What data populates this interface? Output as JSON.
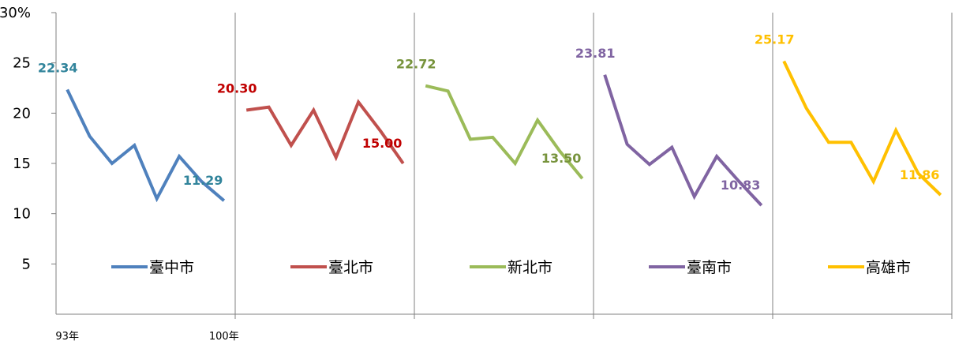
{
  "chart_data": {
    "type": "line",
    "ylim": [
      0,
      30
    ],
    "y_ticks": [
      {
        "value": 5,
        "label": "5"
      },
      {
        "value": 10,
        "label": "10"
      },
      {
        "value": 15,
        "label": "15"
      },
      {
        "value": 20,
        "label": "20"
      },
      {
        "value": 25,
        "label": "25"
      },
      {
        "value": 30,
        "label": "30%"
      }
    ],
    "x_tick_labels": [
      {
        "series_index": 0,
        "point_index": 0,
        "label": "93年"
      },
      {
        "series_index": 0,
        "point_index": 7,
        "label": "100年"
      }
    ],
    "grid": false,
    "legend_position": "inside each panel, lower middle",
    "series": [
      {
        "name": "臺中市",
        "color": "#4F81BD",
        "label_color": "#31849B",
        "values": [
          22.34,
          17.7,
          15.0,
          16.8,
          11.5,
          15.7,
          13.2,
          11.29
        ],
        "data_labels": [
          "22.34",
          null,
          null,
          null,
          null,
          null,
          null,
          "11.29"
        ]
      },
      {
        "name": "臺北市",
        "color": "#C0504D",
        "label_color": "#C00000",
        "values": [
          20.3,
          20.6,
          16.8,
          20.3,
          15.6,
          21.1,
          18.2,
          15.0
        ],
        "data_labels": [
          "20.30",
          null,
          null,
          null,
          null,
          null,
          null,
          "15.00"
        ]
      },
      {
        "name": "新北市",
        "color": "#9BBB59",
        "label_color": "#77933C",
        "values": [
          22.72,
          22.2,
          17.4,
          17.6,
          15.0,
          19.3,
          16.2,
          13.5
        ],
        "data_labels": [
          "22.72",
          null,
          null,
          null,
          null,
          null,
          null,
          "13.50"
        ]
      },
      {
        "name": "臺南市",
        "color": "#8064A2",
        "label_color": "#8064A2",
        "values": [
          23.81,
          16.9,
          14.9,
          16.6,
          11.7,
          15.7,
          13.2,
          10.83
        ],
        "data_labels": [
          "23.81",
          null,
          null,
          null,
          null,
          null,
          null,
          "10.83"
        ]
      },
      {
        "name": "高雄市",
        "color": "#FFC000",
        "label_color": "#FFC000",
        "values": [
          25.17,
          20.5,
          17.1,
          17.1,
          13.2,
          18.3,
          14.0,
          11.86
        ],
        "data_labels": [
          "25.17",
          null,
          null,
          null,
          null,
          null,
          null,
          "11.86"
        ]
      }
    ]
  }
}
